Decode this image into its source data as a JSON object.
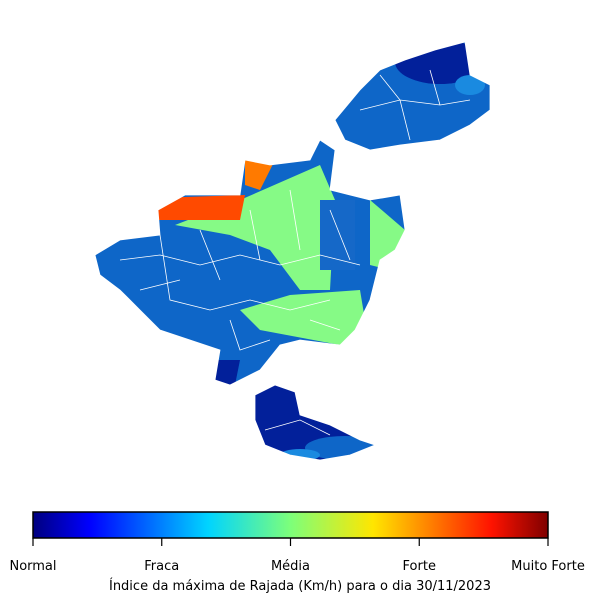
{
  "colorbar": {
    "labels": [
      "Normal",
      "Fraca",
      "Média",
      "Forte",
      "Muito Forte"
    ]
  },
  "caption": "Índice da máxima de Rajada (Km/h) para o dia 30/11/2023"
}
